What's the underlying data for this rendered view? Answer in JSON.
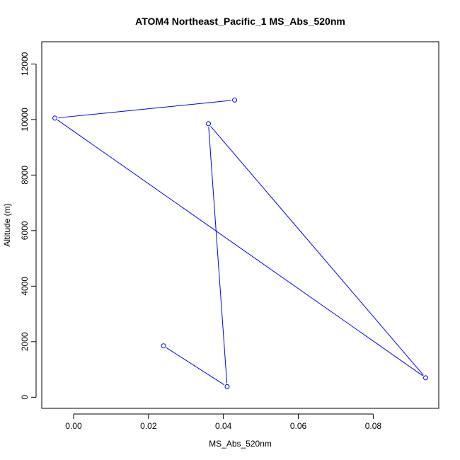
{
  "chart_data": {
    "type": "line",
    "title": "ATOM4 Northeast_Pacific_1 MS_Abs_520nm",
    "xlabel": "MS_Abs_520nm",
    "ylabel": "Altitude (m)",
    "xlim": [
      -0.0085,
      0.0975
    ],
    "ylim": [
      -400,
      12800
    ],
    "x_ticks": [
      0.0,
      0.02,
      0.04,
      0.06,
      0.08
    ],
    "x_tick_labels": [
      "0.00",
      "0.02",
      "0.04",
      "0.06",
      "0.08"
    ],
    "y_ticks": [
      0,
      2000,
      4000,
      6000,
      8000,
      10000,
      12000
    ],
    "y_tick_labels": [
      "0",
      "2000",
      "4000",
      "6000",
      "8000",
      "10000",
      "12000"
    ],
    "grid": false,
    "series": [
      {
        "color": "#0000ff",
        "marker": "open-circle",
        "x": [
          0.043,
          -0.005,
          0.094,
          0.036,
          0.041,
          0.024
        ],
        "y": [
          10700,
          10050,
          700,
          9850,
          380,
          1850
        ]
      }
    ]
  }
}
